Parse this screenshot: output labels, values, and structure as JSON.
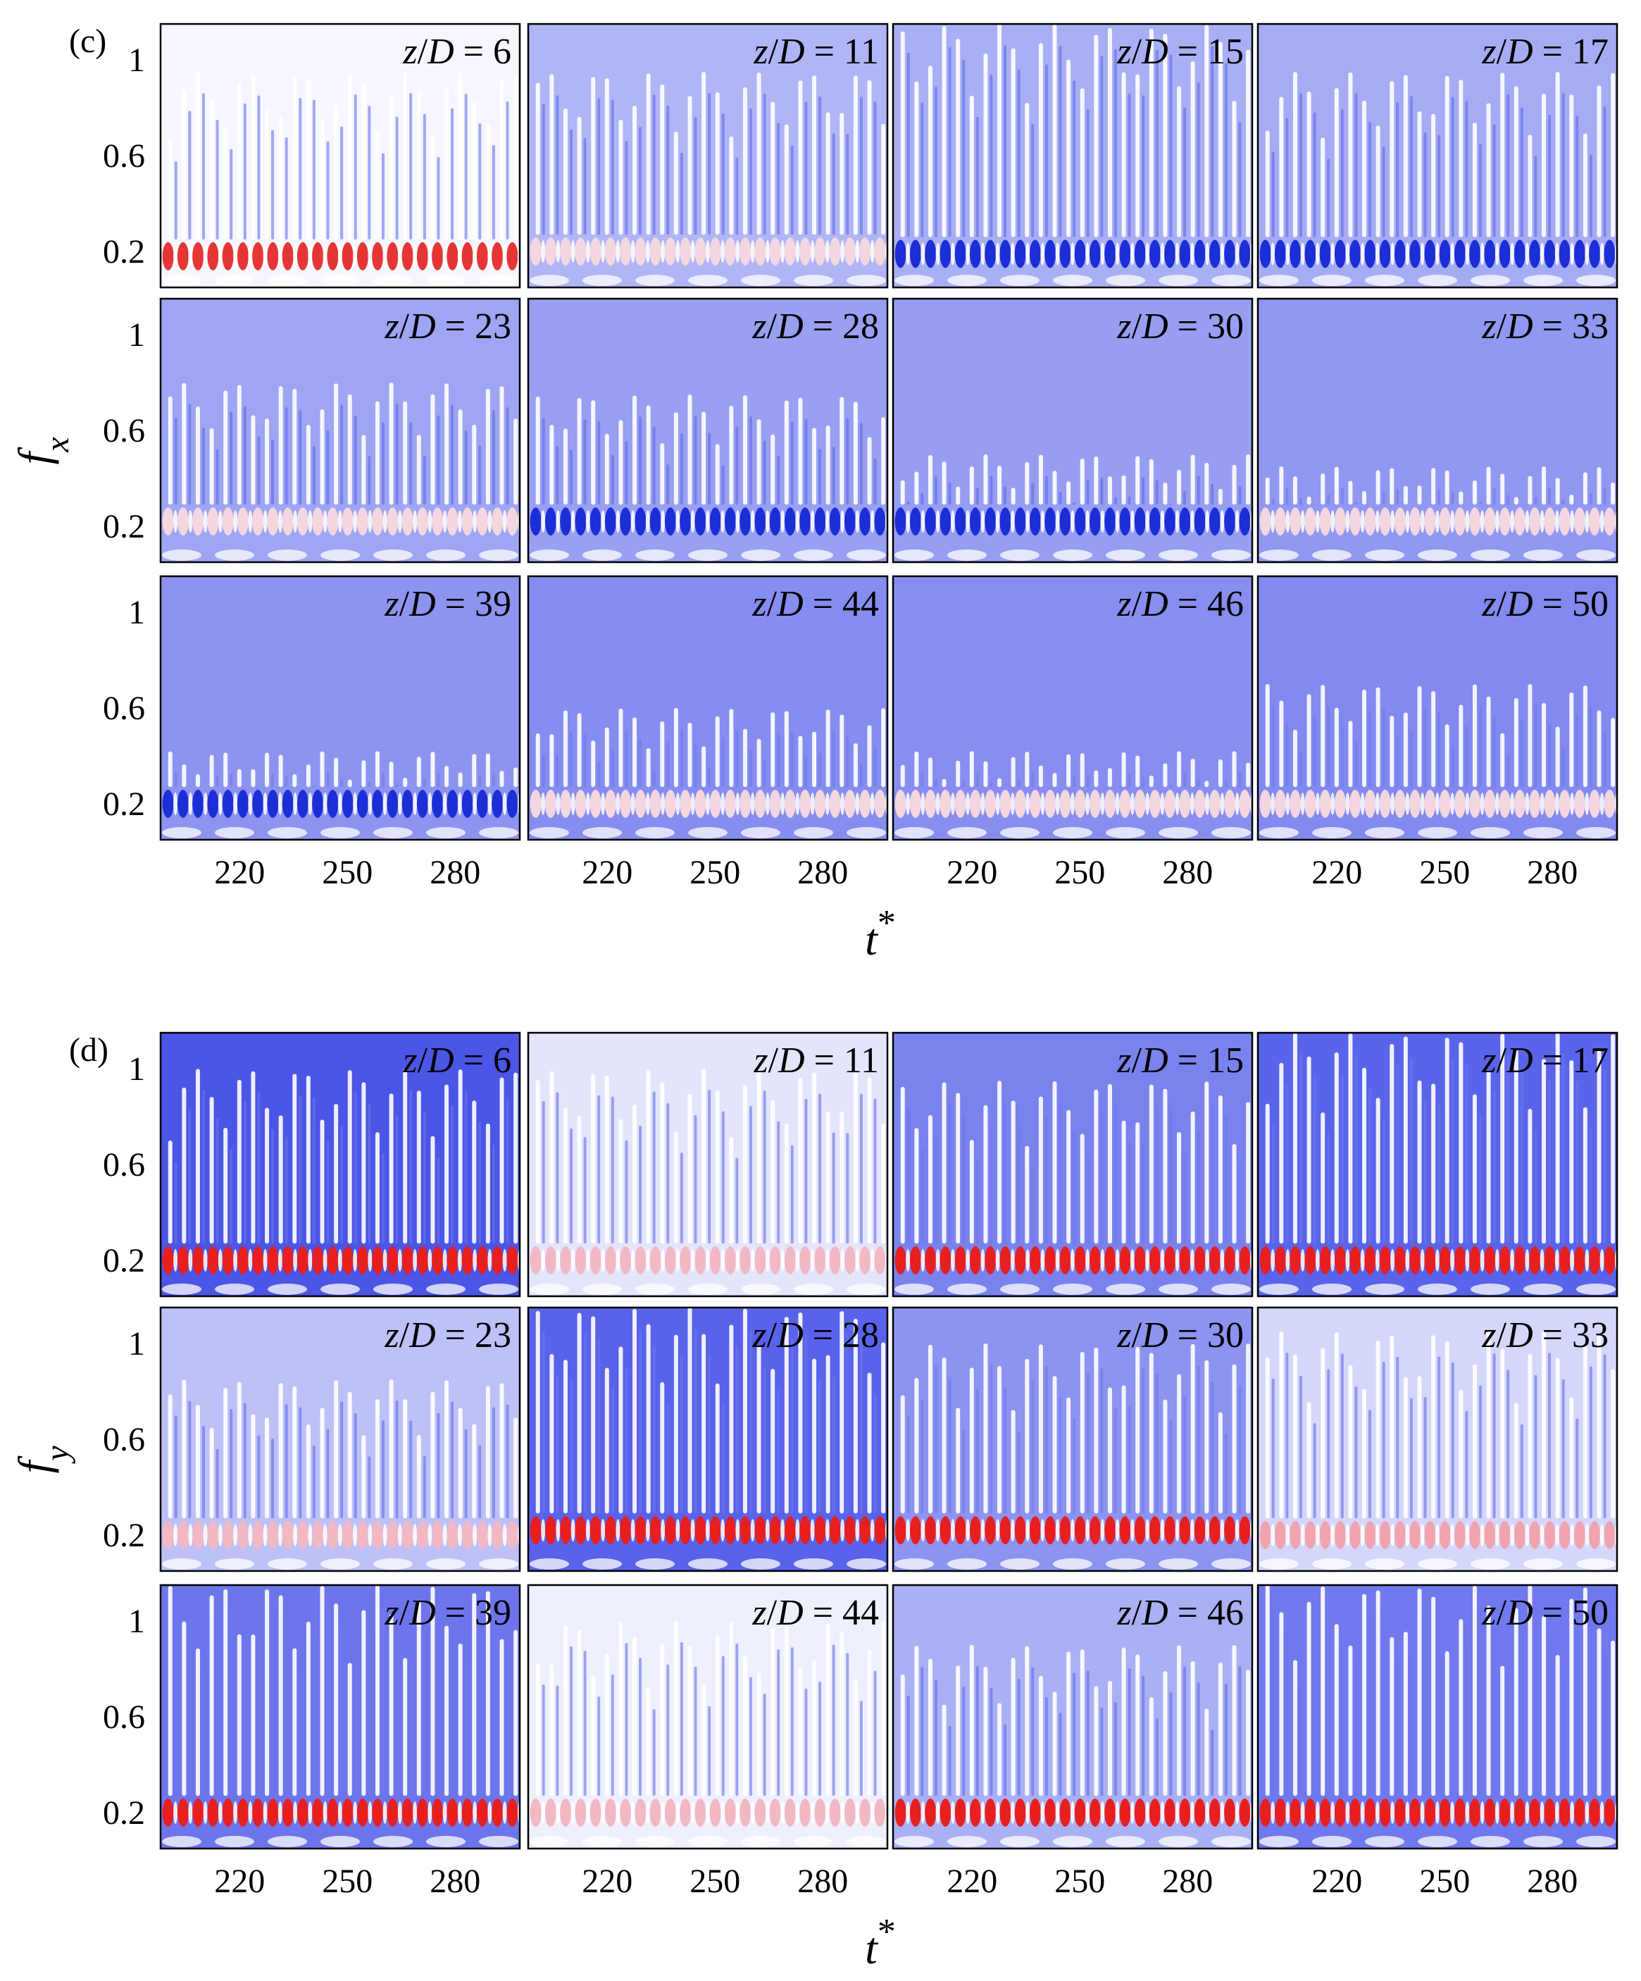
{
  "chart_data": [
    {
      "type": "heatmap",
      "panel_label": "(c)",
      "ylabel": "f",
      "ylabel_sub": "x",
      "xlabel": "t",
      "xlabel_sup": "*",
      "y_ticks": [
        "1",
        "0.6",
        "0.2"
      ],
      "y_tick_values": [
        1,
        0.6,
        0.2
      ],
      "ylim": [
        0.05,
        1.15
      ],
      "x_ticks": [
        "220",
        "250",
        "280"
      ],
      "x_tick_values": [
        220,
        250,
        280
      ],
      "xlim": [
        198,
        298
      ],
      "subplots": [
        {
          "label": "z/D = 6",
          "prefix": "z/D = ",
          "z": 6,
          "background": "#f5f6fe",
          "stripe_top": 0.95,
          "carrier_f": 0.18,
          "carrier_color": "#e53535"
        },
        {
          "label": "z/D = 11",
          "prefix": "z/D = ",
          "z": 11,
          "background": "#b0b5f6",
          "stripe_top": 0.95,
          "carrier_f": 0.2,
          "carrier_color": "#f4d6de"
        },
        {
          "label": "z/D = 15",
          "prefix": "z/D = ",
          "z": 15,
          "background": "#a9aff4",
          "stripe_top": 1.15,
          "carrier_f": 0.19,
          "carrier_color": "#1c2fd6"
        },
        {
          "label": "z/D = 17",
          "prefix": "z/D = ",
          "z": 17,
          "background": "#a6acf4",
          "stripe_top": 0.95,
          "carrier_f": 0.19,
          "carrier_color": "#1c2fd6"
        },
        {
          "label": "z/D = 23",
          "prefix": "z/D = ",
          "z": 23,
          "background": "#9ea5f3",
          "stripe_top": 0.8,
          "carrier_f": 0.22,
          "carrier_color": "#f4d6de"
        },
        {
          "label": "z/D = 28",
          "prefix": "z/D = ",
          "z": 28,
          "background": "#99a0f2",
          "stripe_top": 0.75,
          "carrier_f": 0.22,
          "carrier_color": "#1c2fd6"
        },
        {
          "label": "z/D = 30",
          "prefix": "z/D = ",
          "z": 30,
          "background": "#979ef2",
          "stripe_top": 0.5,
          "carrier_f": 0.22,
          "carrier_color": "#1c2fd6"
        },
        {
          "label": "z/D = 33",
          "prefix": "z/D = ",
          "z": 33,
          "background": "#9198f1",
          "stripe_top": 0.45,
          "carrier_f": 0.22,
          "carrier_color": "#f4d6de"
        },
        {
          "label": "z/D = 39",
          "prefix": "z/D = ",
          "z": 39,
          "background": "#8d94f0",
          "stripe_top": 0.42,
          "carrier_f": 0.2,
          "carrier_color": "#1c2fd6"
        },
        {
          "label": "z/D = 44",
          "prefix": "z/D = ",
          "z": 44,
          "background": "#858df0",
          "stripe_top": 0.6,
          "carrier_f": 0.2,
          "carrier_color": "#f4d6de"
        },
        {
          "label": "z/D = 46",
          "prefix": "z/D = ",
          "z": 46,
          "background": "#878ef0",
          "stripe_top": 0.42,
          "carrier_f": 0.2,
          "carrier_color": "#f4d6de"
        },
        {
          "label": "z/D = 50",
          "prefix": "z/D = ",
          "z": 50,
          "background": "#8289ef",
          "stripe_top": 0.7,
          "carrier_f": 0.2,
          "carrier_color": "#f4d6de"
        }
      ]
    },
    {
      "type": "heatmap",
      "panel_label": "(d)",
      "ylabel": "f",
      "ylabel_sub": "y",
      "xlabel": "t",
      "xlabel_sup": "*",
      "y_ticks": [
        "1",
        "0.6",
        "0.2"
      ],
      "y_tick_values": [
        1,
        0.6,
        0.2
      ],
      "ylim": [
        0.05,
        1.15
      ],
      "x_ticks": [
        "220",
        "250",
        "280"
      ],
      "x_tick_values": [
        220,
        250,
        280
      ],
      "xlim": [
        198,
        298
      ],
      "subplots": [
        {
          "label": "z/D = 6",
          "prefix": "z/D = ",
          "z": 6,
          "background": "#4b55e6",
          "stripe_top": 1.0,
          "carrier_f": 0.2,
          "carrier_color": "#e81f1f"
        },
        {
          "label": "z/D = 11",
          "prefix": "z/D = ",
          "z": 11,
          "background": "#e3e5fb",
          "stripe_top": 1.0,
          "carrier_f": 0.2,
          "carrier_color": "#f2b8c4"
        },
        {
          "label": "z/D = 15",
          "prefix": "z/D = ",
          "z": 15,
          "background": "#7a82ee",
          "stripe_top": 0.95,
          "carrier_f": 0.2,
          "carrier_color": "#e81f1f"
        },
        {
          "label": "z/D = 17",
          "prefix": "z/D = ",
          "z": 17,
          "background": "#5a64ea",
          "stripe_top": 1.15,
          "carrier_f": 0.2,
          "carrier_color": "#e81f1f"
        },
        {
          "label": "z/D = 23",
          "prefix": "z/D = ",
          "z": 23,
          "background": "#bdc1f7",
          "stripe_top": 0.85,
          "carrier_f": 0.2,
          "carrier_color": "#f2b8c4"
        },
        {
          "label": "z/D = 28",
          "prefix": "z/D = ",
          "z": 28,
          "background": "#5962ea",
          "stripe_top": 1.15,
          "carrier_f": 0.22,
          "carrier_color": "#e81f1f"
        },
        {
          "label": "z/D = 30",
          "prefix": "z/D = ",
          "z": 30,
          "background": "#8c93f0",
          "stripe_top": 1.0,
          "carrier_f": 0.22,
          "carrier_color": "#e81f1f"
        },
        {
          "label": "z/D = 33",
          "prefix": "z/D = ",
          "z": 33,
          "background": "#d4d7fa",
          "stripe_top": 1.05,
          "carrier_f": 0.2,
          "carrier_color": "#f2a3b0"
        },
        {
          "label": "z/D = 39",
          "prefix": "z/D = ",
          "z": 39,
          "background": "#6d75ec",
          "stripe_top": 1.15,
          "carrier_f": 0.2,
          "carrier_color": "#e81f1f"
        },
        {
          "label": "z/D = 44",
          "prefix": "z/D = ",
          "z": 44,
          "background": "#eef0fd",
          "stripe_top": 1.0,
          "carrier_f": 0.2,
          "carrier_color": "#f2b8c4"
        },
        {
          "label": "z/D = 46",
          "prefix": "z/D = ",
          "z": 46,
          "background": "#aab0f4",
          "stripe_top": 0.9,
          "carrier_f": 0.2,
          "carrier_color": "#e81f1f"
        },
        {
          "label": "z/D = 50",
          "prefix": "z/D = ",
          "z": 50,
          "background": "#7079ed",
          "stripe_top": 1.15,
          "carrier_f": 0.2,
          "carrier_color": "#e81f1f"
        }
      ]
    }
  ]
}
